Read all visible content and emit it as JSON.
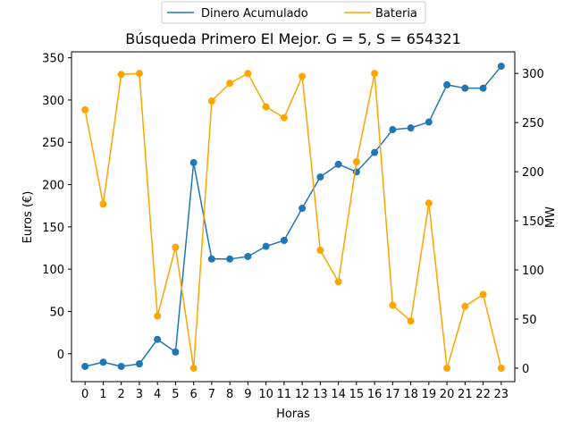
{
  "chart_data": {
    "type": "line",
    "title": "Búsqueda Primero El Mejor. G = 5, S = 654321",
    "xlabel": "Horas",
    "ylabel_left": "Euros (€)",
    "ylabel_right": "MW",
    "x": [
      0,
      1,
      2,
      3,
      4,
      5,
      6,
      7,
      8,
      9,
      10,
      11,
      12,
      13,
      14,
      15,
      16,
      17,
      18,
      19,
      20,
      21,
      22,
      23
    ],
    "xticks": [
      "0",
      "1",
      "2",
      "3",
      "4",
      "5",
      "6",
      "7",
      "8",
      "9",
      "10",
      "11",
      "12",
      "13",
      "14",
      "15",
      "16",
      "17",
      "18",
      "19",
      "20",
      "21",
      "22",
      "23"
    ],
    "ylim_left": [
      -33,
      357
    ],
    "yticks_left": [
      0,
      50,
      100,
      150,
      200,
      250,
      300,
      350
    ],
    "ylim_right": [
      -13.7,
      322
    ],
    "yticks_right": [
      0,
      50,
      100,
      150,
      200,
      250,
      300
    ],
    "legend_position": "top-center",
    "grid": false,
    "series": [
      {
        "name": "Dinero Acumulado",
        "axis": "left",
        "color": "#1f77b4",
        "values": [
          -15,
          -10,
          -15,
          -12,
          17,
          2,
          226,
          112,
          112,
          115,
          127,
          134,
          172,
          209,
          224,
          215,
          238,
          265,
          267,
          274,
          318,
          314,
          314,
          340
        ]
      },
      {
        "name": "Bateria",
        "axis": "right",
        "color": "#ffa500",
        "values": [
          263,
          167,
          299,
          300,
          53,
          123,
          0,
          272,
          290,
          300,
          266,
          255,
          297,
          120,
          88,
          210,
          300,
          64,
          48,
          168,
          0,
          63,
          75,
          0
        ]
      }
    ]
  }
}
